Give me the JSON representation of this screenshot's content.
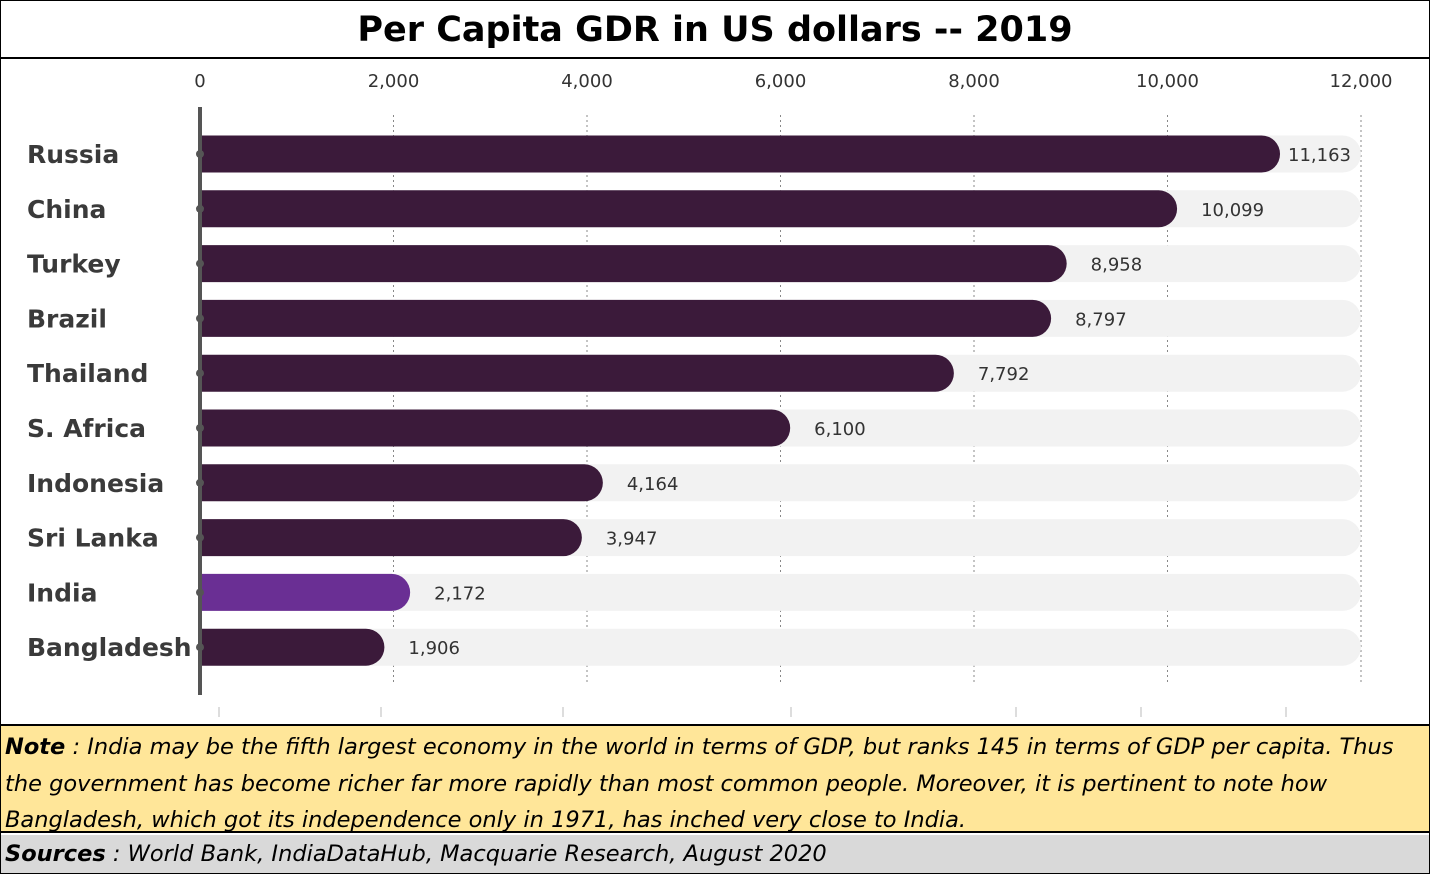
{
  "title": "Per Capita GDR in US dollars -- 2019",
  "note": {
    "label": "Note",
    "text": " : India may be the  fifth largest economy  in the world in terms of GDP, but  ranks 145 in terms of GDP per capita.  Thus the government has become richer far more rapidly than most common people.  Moreover, it is pertinent to note how Bangladesh, which got its independence only in 1971, has inched very close to India."
  },
  "sources": {
    "label": "Sources",
    "text": " : World Bank, IndiaDataHub, Macquarie Research, August 2020"
  },
  "colors": {
    "bar": "#3b1a3a",
    "highlight": "#6a2f94",
    "track": "#f2f2f2",
    "axis": "#555555",
    "grid": "#888888",
    "category_label": "#3a3a3a",
    "value_label": "#333333",
    "note_bg": "#ffe699",
    "sources_bg": "#d9d9d9"
  },
  "chart_data": {
    "type": "bar",
    "orientation": "horizontal",
    "title": "Per Capita GDR in US dollars -- 2019",
    "categories": [
      "Russia",
      "China",
      "Turkey",
      "Brazil",
      "Thailand",
      "S. Africa",
      "Indonesia",
      "Sri Lanka",
      "India",
      "Bangladesh"
    ],
    "values": [
      11163,
      10099,
      8958,
      8797,
      7792,
      6100,
      4164,
      3947,
      2172,
      1906
    ],
    "value_labels": [
      "11,163",
      "10,099",
      "8,958",
      "8,797",
      "7,792",
      "6,100",
      "4,164",
      "3,947",
      "2,172",
      "1,906"
    ],
    "highlight_category": "India",
    "xlim": [
      0,
      12000
    ],
    "xticks": [
      0,
      2000,
      4000,
      6000,
      8000,
      10000,
      12000
    ],
    "xtick_labels": [
      "0",
      "2,000",
      "4,000",
      "6,000",
      "8,000",
      "10,000",
      "12,000"
    ],
    "xaxis_position": "top",
    "grid": true,
    "legend": "none"
  }
}
